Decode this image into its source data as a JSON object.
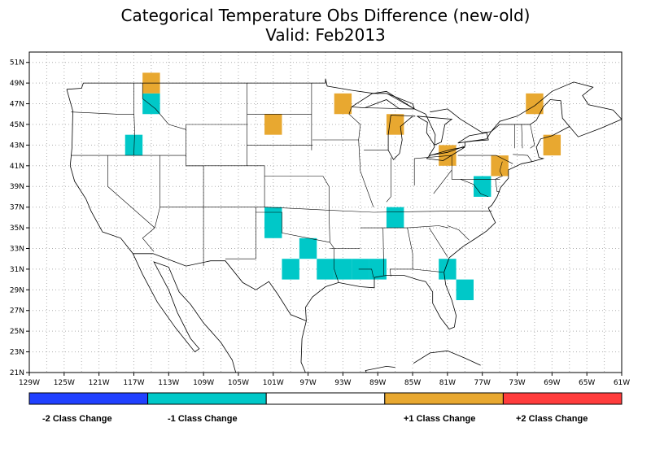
{
  "title_line1": "Categorical Temperature Obs Difference (new-old)",
  "title_line2": "Valid: Feb2013",
  "lon_labels": [
    "129W",
    "125W",
    "121W",
    "117W",
    "113W",
    "109W",
    "105W",
    "101W",
    "97W",
    "93W",
    "89W",
    "85W",
    "81W",
    "77W",
    "73W",
    "69W",
    "65W",
    "61W"
  ],
  "lat_labels": [
    "21N",
    "23N",
    "25N",
    "27N",
    "29N",
    "31N",
    "33N",
    "35N",
    "37N",
    "39N",
    "41N",
    "43N",
    "45N",
    "47N",
    "49N",
    "51N"
  ],
  "colors": {
    "minus2": "#2040ff",
    "minus1": "#00c8c8",
    "zero": "#ffffff",
    "plus1": "#e8a830",
    "plus2": "#ff3c3c"
  },
  "legend": {
    "minus2": "-2 Class Change",
    "minus1": "-1 Class Change",
    "plus1": "+1 Class Change",
    "plus2": "+2 Class Change"
  },
  "cells": {
    "minus1": [
      [
        -116,
        46
      ],
      [
        -118,
        42
      ],
      [
        -102,
        35
      ],
      [
        -102,
        34
      ],
      [
        -98,
        32
      ],
      [
        -100,
        30
      ],
      [
        -96,
        30
      ],
      [
        -94,
        30
      ],
      [
        -92,
        30
      ],
      [
        -90,
        30
      ],
      [
        -88,
        35
      ],
      [
        -82,
        30
      ],
      [
        -80,
        28
      ],
      [
        -78,
        38
      ]
    ],
    "plus1": [
      [
        -116,
        48
      ],
      [
        -102,
        44
      ],
      [
        -94,
        46
      ],
      [
        -88,
        44
      ],
      [
        -82,
        41
      ],
      [
        -76,
        40
      ],
      [
        -72,
        46
      ],
      [
        -70,
        42
      ]
    ]
  }
}
